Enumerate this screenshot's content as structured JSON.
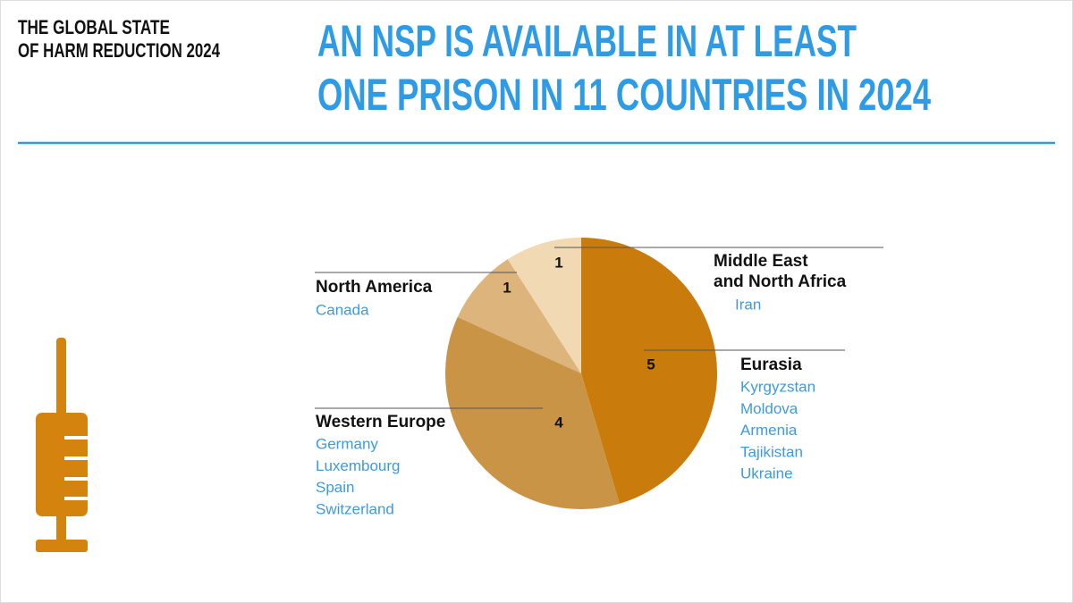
{
  "source": [
    "THE GLOBAL STATE",
    "OF HARM REDUCTION 2024"
  ],
  "chart_data": {
    "type": "pie",
    "title": [
      "AN NSP IS AVAILABLE IN AT LEAST",
      "ONE PRISON IN 11 COUNTRIES IN 2024"
    ],
    "categories": [
      "Eurasia",
      "Western Europe",
      "North America",
      "Middle East\nand North Africa"
    ],
    "values": [
      5,
      4,
      1,
      1
    ],
    "colors": [
      "#c97c0b",
      "#c99445",
      "#dcb47c",
      "#f0d9b3"
    ],
    "countries": [
      [
        "Kyrgyzstan",
        "Moldova",
        "Armenia",
        "Tajikistan",
        "Ukraine"
      ],
      [
        "Germany",
        "Luxembourg",
        "Spain",
        "Switzerland"
      ],
      [
        "Canada"
      ],
      [
        "Iran"
      ]
    ]
  }
}
